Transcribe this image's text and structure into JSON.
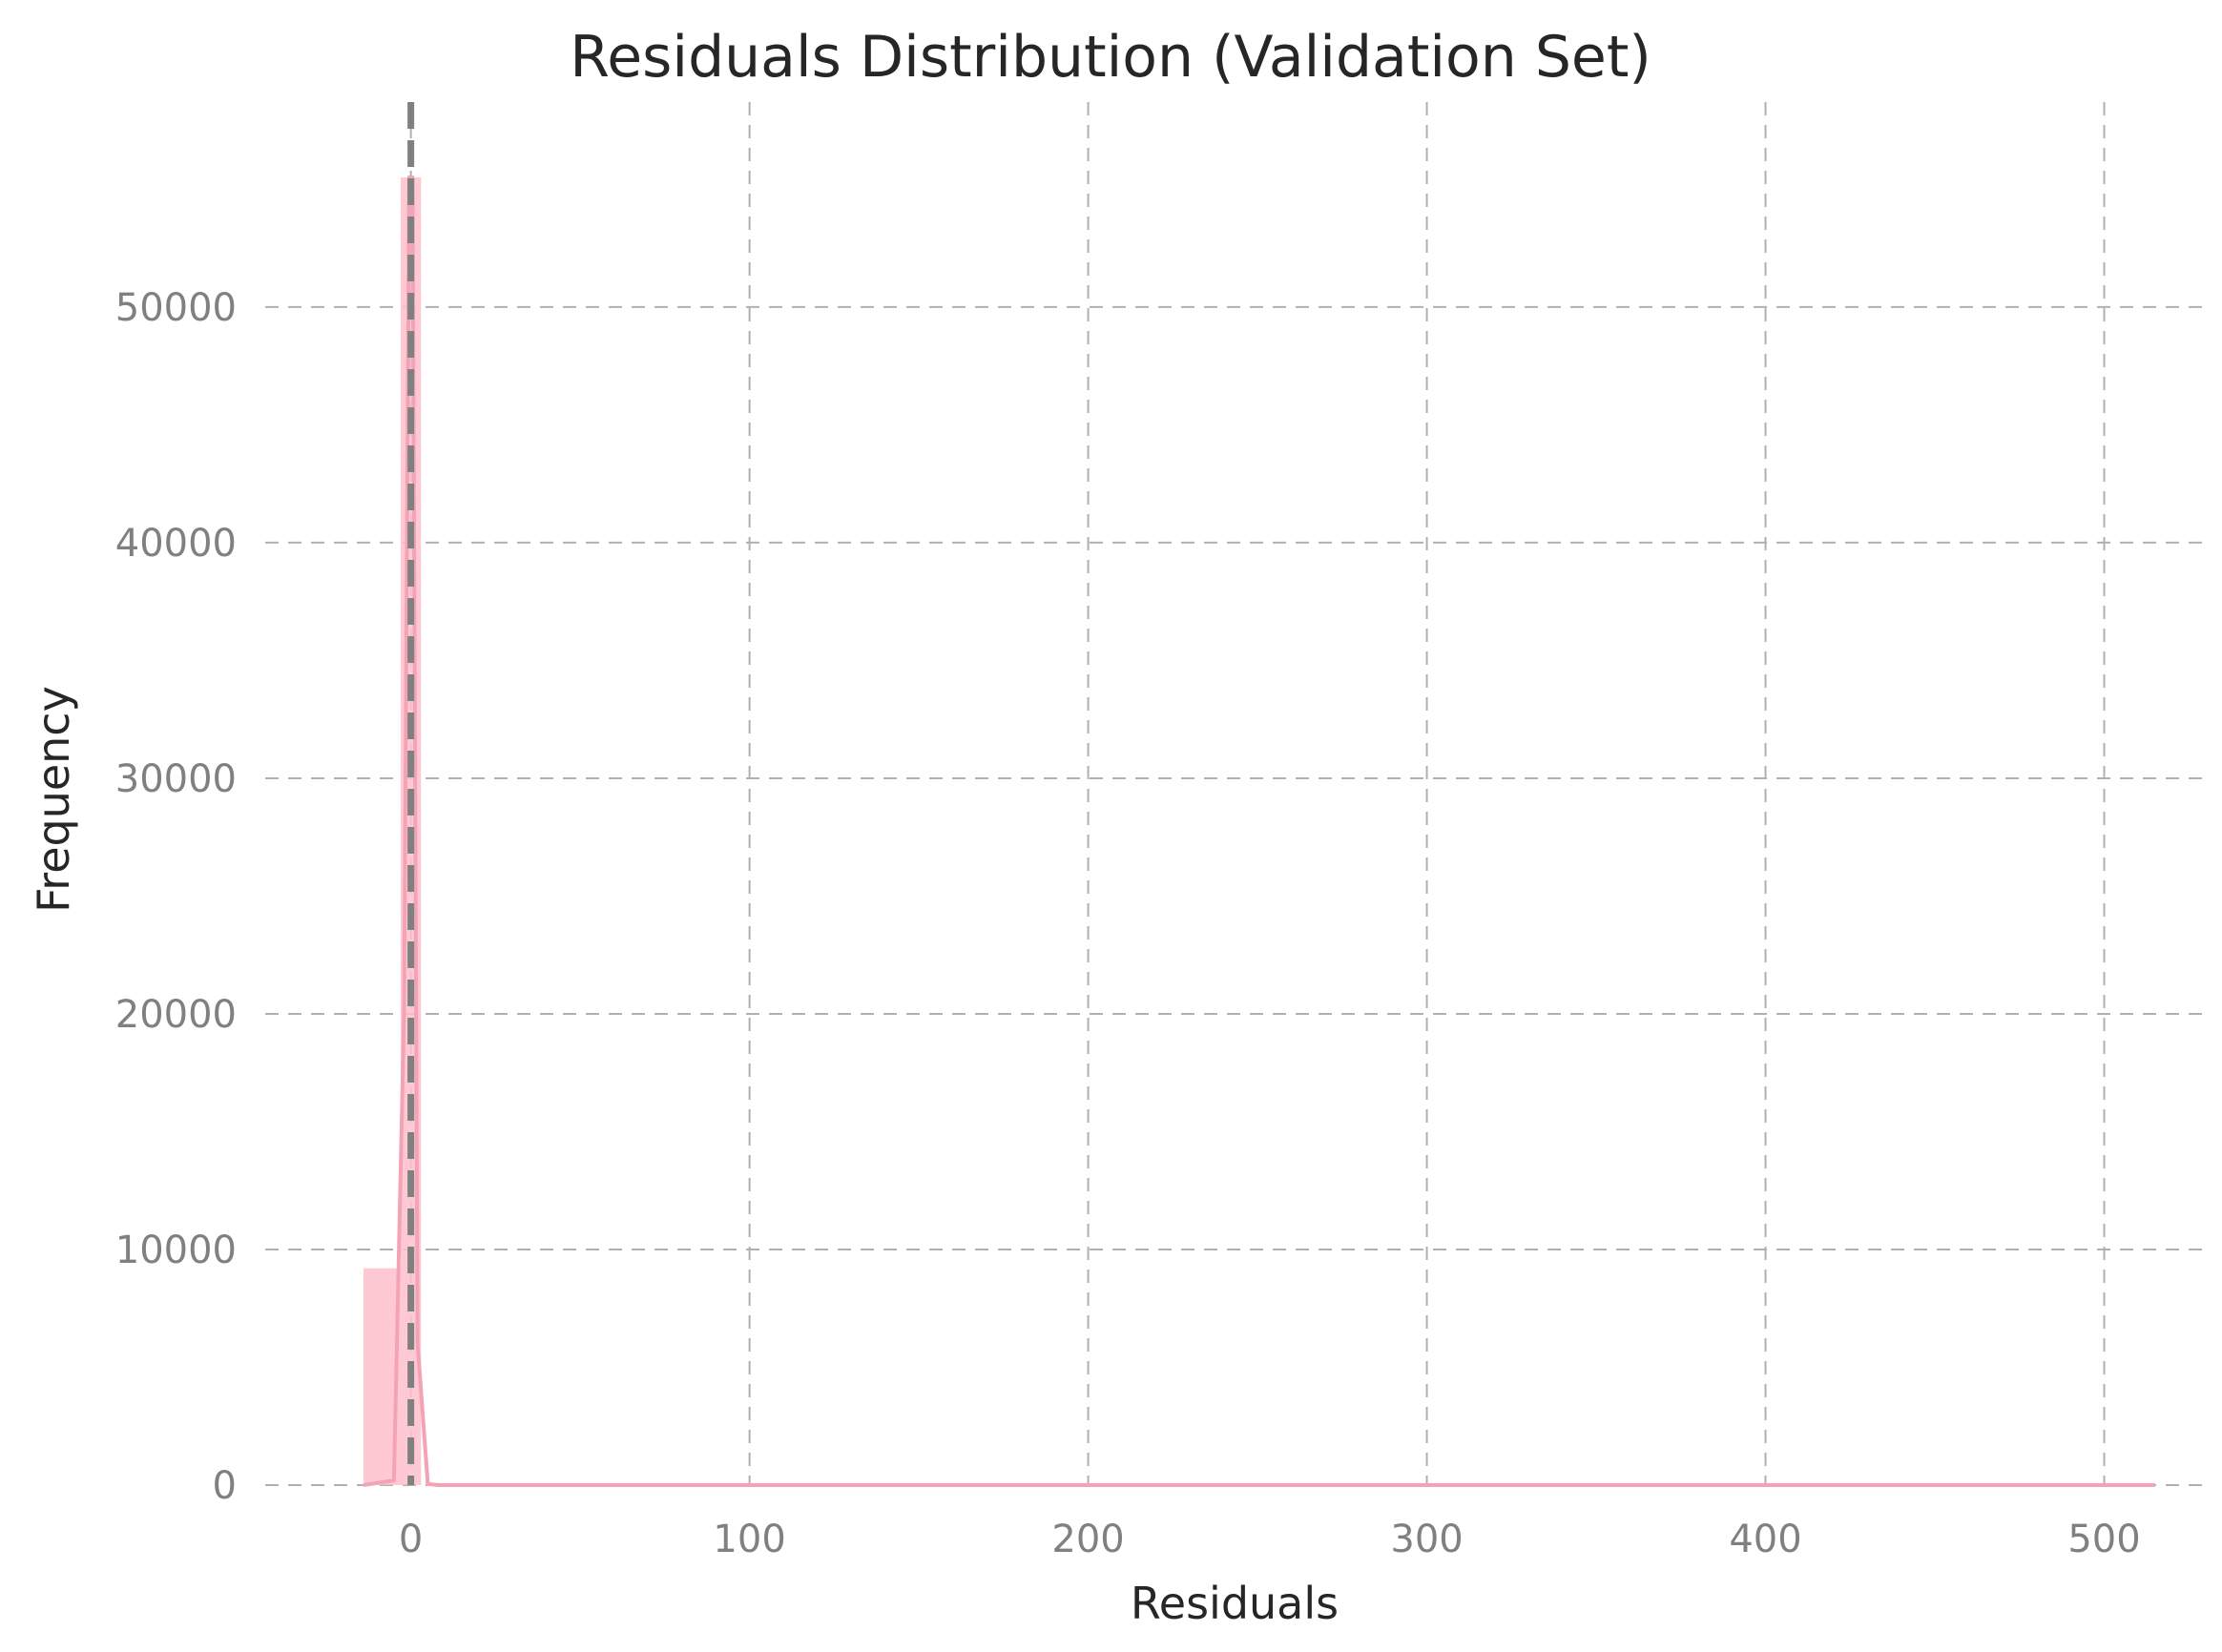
{
  "chart_data": {
    "type": "bar",
    "title": "Residuals Distribution (Validation Set)",
    "xlabel": "Residuals",
    "ylabel": "Frequency",
    "xlim": [
      -43,
      530
    ],
    "ylim": [
      0,
      58700
    ],
    "x_ticks": [
      0,
      100,
      200,
      300,
      400,
      500
    ],
    "y_ticks": [
      0,
      10000,
      20000,
      30000,
      40000,
      50000
    ],
    "grid": true,
    "histogram": {
      "bins": [
        {
          "x0": -14,
          "x1": -3,
          "count": 9200
        },
        {
          "x0": -3,
          "x1": 3,
          "count": 55500
        }
      ]
    },
    "kde": {
      "x": [
        -14,
        -5,
        -2,
        -0.5,
        0.5,
        2,
        5,
        8,
        515
      ],
      "y": [
        0,
        200,
        20000,
        55500,
        55500,
        6000,
        50,
        0,
        0
      ]
    },
    "reference_line": {
      "x": 0,
      "style": "dashed"
    },
    "colors": {
      "histogram": "#ffc0cb",
      "kde": "#f4a3b6",
      "reference_line": "#808080",
      "grid": "#b0b0b0"
    }
  }
}
